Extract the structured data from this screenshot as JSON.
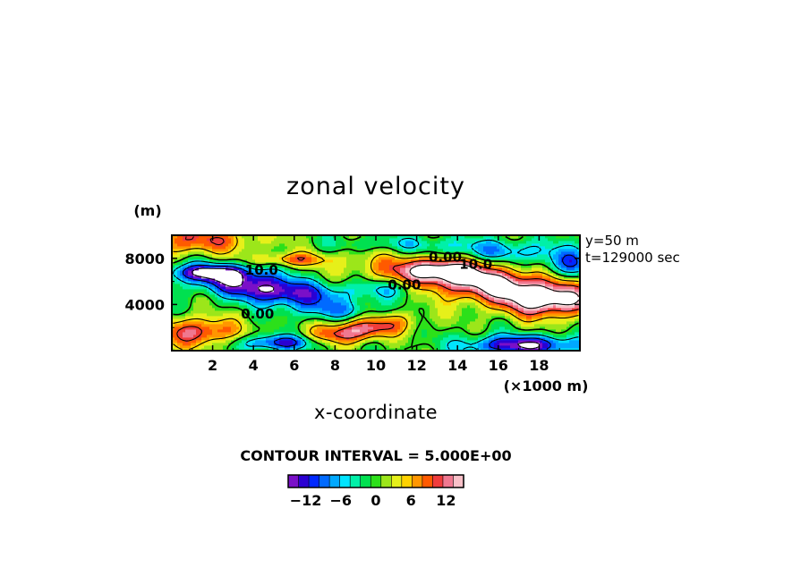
{
  "chart_data": {
    "type": "heatmap",
    "title": "zonal velocity",
    "xlabel": "x-coordinate",
    "x_units": "(×1000 m)",
    "y_units": "(m)",
    "xlim": [
      0,
      20
    ],
    "ylim": [
      0,
      10000
    ],
    "x_ticks": [
      "2",
      "4",
      "6",
      "8",
      "10",
      "12",
      "14",
      "16",
      "18"
    ],
    "y_ticks": [
      "4000",
      "8000"
    ],
    "annotations": [
      "y=50 m",
      "t=129000 sec"
    ],
    "contour_interval_text": "CONTOUR INTERVAL = 5.000E+00",
    "contour_interval": 5,
    "contour_labels": [
      {
        "text": "10.0",
        "x": 4.4,
        "y": 6600
      },
      {
        "text": "0.00",
        "x": 4.2,
        "y": 2800
      },
      {
        "text": "0.00",
        "x": 11.4,
        "y": 5300
      },
      {
        "text": "0.00",
        "x": 13.4,
        "y": 7700
      },
      {
        "text": "10.0",
        "x": 14.9,
        "y": 7100
      }
    ],
    "colorbar": {
      "tick_labels": [
        "−12",
        "−6",
        "0",
        "6",
        "12"
      ],
      "tick_values": [
        -12,
        -6,
        0,
        6,
        12
      ],
      "range": [
        -15,
        15
      ],
      "colors": [
        "#7a10c8",
        "#2b00d2",
        "#0028ff",
        "#006aff",
        "#00a8ff",
        "#00e4ff",
        "#00f0a8",
        "#00e050",
        "#2ce01a",
        "#9ce61a",
        "#e6f01a",
        "#ffd200",
        "#ff9600",
        "#ff5a00",
        "#f03c3c",
        "#f07890",
        "#f8c0c8"
      ]
    },
    "features": [
      {
        "x": 15.0,
        "y": 6000,
        "sx": 3.5,
        "sy": 1100,
        "amp": 17,
        "rot": -0.25
      },
      {
        "x": 18.4,
        "y": 4200,
        "sx": 1.6,
        "sy": 1000,
        "amp": 12,
        "rot": 0
      },
      {
        "x": 13.2,
        "y": 7200,
        "sx": 1.3,
        "sy": 700,
        "amp": 8,
        "rot": 0
      },
      {
        "x": 9.0,
        "y": 1700,
        "sx": 1.9,
        "sy": 700,
        "amp": 14,
        "rot": 0.35
      },
      {
        "x": 1.3,
        "y": 1600,
        "sx": 1.4,
        "sy": 900,
        "amp": 12,
        "rot": 0
      },
      {
        "x": 1.0,
        "y": 9600,
        "sx": 2.2,
        "sy": 900,
        "amp": 10,
        "rot": 0
      },
      {
        "x": 6.0,
        "y": 7900,
        "sx": 1.2,
        "sy": 400,
        "amp": 8,
        "rot": 0
      },
      {
        "x": 4.6,
        "y": 5400,
        "sx": 2.6,
        "sy": 900,
        "amp": -16,
        "rot": -0.3
      },
      {
        "x": 2.0,
        "y": 6800,
        "sx": 1.4,
        "sy": 500,
        "amp": -12,
        "rot": 0
      },
      {
        "x": 17.2,
        "y": 500,
        "sx": 2.0,
        "sy": 600,
        "amp": -15,
        "rot": 0
      },
      {
        "x": 5.5,
        "y": 700,
        "sx": 1.6,
        "sy": 500,
        "amp": -13,
        "rot": 0
      },
      {
        "x": 16.0,
        "y": 8600,
        "sx": 2.6,
        "sy": 700,
        "amp": -7,
        "rot": 0
      },
      {
        "x": 10.5,
        "y": 5400,
        "sx": 1.5,
        "sy": 600,
        "amp": -6,
        "rot": 0
      },
      {
        "x": 11.0,
        "y": 9300,
        "sx": 2.5,
        "sy": 500,
        "amp": -4,
        "rot": 0
      },
      {
        "x": 8.0,
        "y": 3400,
        "sx": 1.5,
        "sy": 500,
        "amp": -4,
        "rot": 0
      },
      {
        "x": 19.5,
        "y": 7400,
        "sx": 0.9,
        "sy": 800,
        "amp": -9,
        "rot": 0
      }
    ]
  }
}
